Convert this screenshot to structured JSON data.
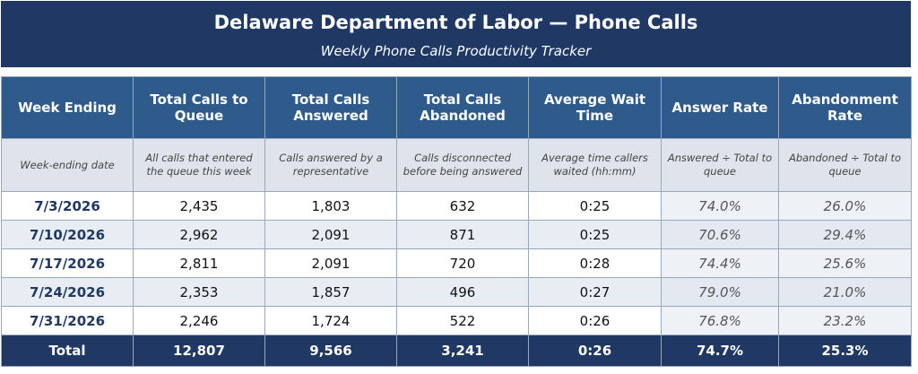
{
  "header": {
    "title": "Delaware Department of Labor — Phone Calls",
    "subtitle": "Weekly Phone Calls Productivity Tracker"
  },
  "table": {
    "columns": [
      "Week Ending",
      "Total Calls to Queue",
      "Total Calls Answered",
      "Total Calls Abandoned",
      "Average Wait Time",
      "Answer Rate",
      "Abandonment Rate"
    ],
    "descriptions": [
      "Week-ending date",
      "All calls that entered the queue this week",
      "Calls answered by a representative",
      "Calls disconnected before being answered",
      "Average time callers waited (hh:mm)",
      "Answered ÷ Total to queue",
      "Abandoned ÷ Total to queue"
    ],
    "rows": [
      [
        "7/3/2026",
        "2,435",
        "1,803",
        "632",
        "0:25",
        "74.0%",
        "26.0%"
      ],
      [
        "7/10/2026",
        "2,962",
        "2,091",
        "871",
        "0:25",
        "70.6%",
        "29.4%"
      ],
      [
        "7/17/2026",
        "2,811",
        "2,091",
        "720",
        "0:28",
        "74.4%",
        "25.6%"
      ],
      [
        "7/24/2026",
        "2,353",
        "1,857",
        "496",
        "0:27",
        "79.0%",
        "21.0%"
      ],
      [
        "7/31/2026",
        "2,246",
        "1,724",
        "522",
        "0:26",
        "76.8%",
        "23.2%"
      ]
    ],
    "total": [
      "Total",
      "12,807",
      "9,566",
      "3,241",
      "0:26",
      "74.7%",
      "25.3%"
    ]
  }
}
